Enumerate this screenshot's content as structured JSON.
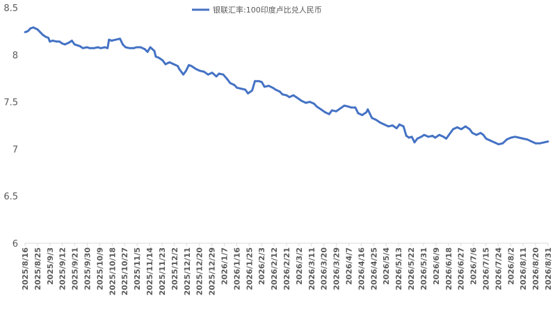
{
  "chart_data": {
    "type": "line",
    "title": "",
    "xlabel": "",
    "ylabel": "",
    "ylim": [
      6,
      8.5
    ],
    "yticks": [
      "6",
      "6.5",
      "7",
      "7.5",
      "8",
      "8.5"
    ],
    "grid": false,
    "legend_position": "top-center",
    "line_color": "#4472C4",
    "x_tick_labels": [
      "2025/8/16",
      "2025/8/25",
      "2025/9/3",
      "2025/9/12",
      "2025/9/21",
      "2025/9/30",
      "2025/10/9",
      "2025/10/18",
      "2025/10/27",
      "2025/11/5",
      "2025/11/14",
      "2025/11/23",
      "2025/12/2",
      "2025/12/11",
      "2025/12/20",
      "2025/12/29",
      "2026/1/7",
      "2026/1/16",
      "2026/1/25",
      "2026/2/3",
      "2026/2/12",
      "2026/2/21",
      "2026/3/2",
      "2026/3/11",
      "2026/3/20",
      "2026/3/29",
      "2026/4/7",
      "2026/4/16",
      "2026/4/25",
      "2026/5/4",
      "2026/5/13",
      "2026/5/22",
      "2026/5/31",
      "2026/6/9",
      "2026/6/18",
      "2026/6/27",
      "2026/7/6",
      "2026/7/15",
      "2026/7/24",
      "2026/8/2",
      "2026/8/11",
      "2026/8/20",
      "2026/8/31"
    ],
    "series": [
      {
        "name": "银联汇率:100印度卢比兑人民币",
        "points": [
          [
            "2025/8/16",
            8.24
          ],
          [
            "2025/8/18",
            8.25
          ],
          [
            "2025/8/20",
            8.28
          ],
          [
            "2025/8/22",
            8.29
          ],
          [
            "2025/8/25",
            8.27
          ],
          [
            "2025/8/27",
            8.24
          ],
          [
            "2025/8/29",
            8.21
          ],
          [
            "2025/8/31",
            8.19
          ],
          [
            "2025/9/2",
            8.18
          ],
          [
            "2025/9/3",
            8.14
          ],
          [
            "2025/9/5",
            8.15
          ],
          [
            "2025/9/8",
            8.14
          ],
          [
            "2025/9/10",
            8.14
          ],
          [
            "2025/9/12",
            8.12
          ],
          [
            "2025/9/14",
            8.11
          ],
          [
            "2025/9/17",
            8.13
          ],
          [
            "2025/9/19",
            8.15
          ],
          [
            "2025/9/21",
            8.11
          ],
          [
            "2025/9/23",
            8.1
          ],
          [
            "2025/9/25",
            8.09
          ],
          [
            "2025/9/27",
            8.07
          ],
          [
            "2025/9/30",
            8.08
          ],
          [
            "2025/10/2",
            8.07
          ],
          [
            "2025/10/5",
            8.07
          ],
          [
            "2025/10/8",
            8.08
          ],
          [
            "2025/10/10",
            8.07
          ],
          [
            "2025/10/13",
            8.08
          ],
          [
            "2025/10/15",
            8.07
          ],
          [
            "2025/10/16",
            8.16
          ],
          [
            "2025/10/18",
            8.15
          ],
          [
            "2025/10/21",
            8.16
          ],
          [
            "2025/10/24",
            8.17
          ],
          [
            "2025/10/26",
            8.11
          ],
          [
            "2025/10/28",
            8.08
          ],
          [
            "2025/10/31",
            8.07
          ],
          [
            "2025/11/3",
            8.07
          ],
          [
            "2025/11/5",
            8.08
          ],
          [
            "2025/11/8",
            8.08
          ],
          [
            "2025/11/11",
            8.06
          ],
          [
            "2025/11/13",
            8.03
          ],
          [
            "2025/11/15",
            8.08
          ],
          [
            "2025/11/18",
            8.04
          ],
          [
            "2025/11/19",
            7.98
          ],
          [
            "2025/11/21",
            7.97
          ],
          [
            "2025/11/24",
            7.94
          ],
          [
            "2025/11/26",
            7.9
          ],
          [
            "2025/11/29",
            7.92
          ],
          [
            "2025/12/2",
            7.9
          ],
          [
            "2025/12/5",
            7.88
          ],
          [
            "2025/12/6",
            7.85
          ],
          [
            "2025/12/9",
            7.79
          ],
          [
            "2025/12/11",
            7.83
          ],
          [
            "2025/12/13",
            7.89
          ],
          [
            "2025/12/15",
            7.88
          ],
          [
            "2025/12/18",
            7.85
          ],
          [
            "2025/12/21",
            7.83
          ],
          [
            "2025/12/24",
            7.82
          ],
          [
            "2025/12/27",
            7.79
          ],
          [
            "2025/12/30",
            7.81
          ],
          [
            "2026/1/2",
            7.77
          ],
          [
            "2026/1/4",
            7.8
          ],
          [
            "2026/1/7",
            7.79
          ],
          [
            "2026/1/10",
            7.74
          ],
          [
            "2026/1/12",
            7.7
          ],
          [
            "2026/1/15",
            7.68
          ],
          [
            "2026/1/17",
            7.65
          ],
          [
            "2026/1/20",
            7.64
          ],
          [
            "2026/1/23",
            7.63
          ],
          [
            "2026/1/25",
            7.59
          ],
          [
            "2026/1/28",
            7.62
          ],
          [
            "2026/1/30",
            7.72
          ],
          [
            "2026/2/2",
            7.72
          ],
          [
            "2026/2/4",
            7.71
          ],
          [
            "2026/2/6",
            7.66
          ],
          [
            "2026/2/9",
            7.67
          ],
          [
            "2026/2/12",
            7.65
          ],
          [
            "2026/2/14",
            7.63
          ],
          [
            "2026/2/17",
            7.61
          ],
          [
            "2026/2/19",
            7.58
          ],
          [
            "2026/2/22",
            7.57
          ],
          [
            "2026/2/24",
            7.55
          ],
          [
            "2026/2/27",
            7.57
          ],
          [
            "2026/3/1",
            7.55
          ],
          [
            "2026/3/3",
            7.53
          ],
          [
            "2026/3/5",
            7.51
          ],
          [
            "2026/3/8",
            7.49
          ],
          [
            "2026/3/11",
            7.5
          ],
          [
            "2026/3/14",
            7.48
          ],
          [
            "2026/3/16",
            7.45
          ],
          [
            "2026/3/19",
            7.42
          ],
          [
            "2026/3/22",
            7.39
          ],
          [
            "2026/3/25",
            7.37
          ],
          [
            "2026/3/27",
            7.41
          ],
          [
            "2026/3/30",
            7.4
          ],
          [
            "2026/4/2",
            7.43
          ],
          [
            "2026/4/5",
            7.46
          ],
          [
            "2026/4/8",
            7.45
          ],
          [
            "2026/4/10",
            7.44
          ],
          [
            "2026/4/13",
            7.44
          ],
          [
            "2026/4/15",
            7.38
          ],
          [
            "2026/4/18",
            7.36
          ],
          [
            "2026/4/21",
            7.39
          ],
          [
            "2026/4/22",
            7.42
          ],
          [
            "2026/4/25",
            7.33
          ],
          [
            "2026/4/28",
            7.31
          ],
          [
            "2026/5/1",
            7.28
          ],
          [
            "2026/5/4",
            7.26
          ],
          [
            "2026/5/7",
            7.24
          ],
          [
            "2026/5/10",
            7.25
          ],
          [
            "2026/5/13",
            7.22
          ],
          [
            "2026/5/15",
            7.26
          ],
          [
            "2026/5/18",
            7.24
          ],
          [
            "2026/5/20",
            7.14
          ],
          [
            "2026/5/22",
            7.12
          ],
          [
            "2026/5/24",
            7.13
          ],
          [
            "2026/5/26",
            7.07
          ],
          [
            "2026/5/28",
            7.11
          ],
          [
            "2026/5/31",
            7.13
          ],
          [
            "2026/6/2",
            7.15
          ],
          [
            "2026/6/5",
            7.13
          ],
          [
            "2026/6/8",
            7.14
          ],
          [
            "2026/6/10",
            7.12
          ],
          [
            "2026/6/13",
            7.15
          ],
          [
            "2026/6/16",
            7.13
          ],
          [
            "2026/6/18",
            7.11
          ],
          [
            "2026/6/20",
            7.15
          ],
          [
            "2026/6/23",
            7.21
          ],
          [
            "2026/6/26",
            7.23
          ],
          [
            "2026/6/29",
            7.21
          ],
          [
            "2026/7/2",
            7.24
          ],
          [
            "2026/7/5",
            7.21
          ],
          [
            "2026/7/7",
            7.17
          ],
          [
            "2026/7/10",
            7.15
          ],
          [
            "2026/7/13",
            7.17
          ],
          [
            "2026/7/15",
            7.15
          ],
          [
            "2026/7/17",
            7.11
          ],
          [
            "2026/7/20",
            7.09
          ],
          [
            "2026/7/23",
            7.07
          ],
          [
            "2026/7/26",
            7.05
          ],
          [
            "2026/7/29",
            7.06
          ],
          [
            "2026/8/1",
            7.1
          ],
          [
            "2026/8/4",
            7.12
          ],
          [
            "2026/8/7",
            7.13
          ],
          [
            "2026/8/10",
            7.12
          ],
          [
            "2026/8/13",
            7.11
          ],
          [
            "2026/8/16",
            7.1
          ],
          [
            "2026/8/19",
            7.08
          ],
          [
            "2026/8/22",
            7.06
          ],
          [
            "2026/8/25",
            7.06
          ],
          [
            "2026/8/28",
            7.07
          ],
          [
            "2026/8/31",
            7.08
          ]
        ]
      }
    ]
  }
}
